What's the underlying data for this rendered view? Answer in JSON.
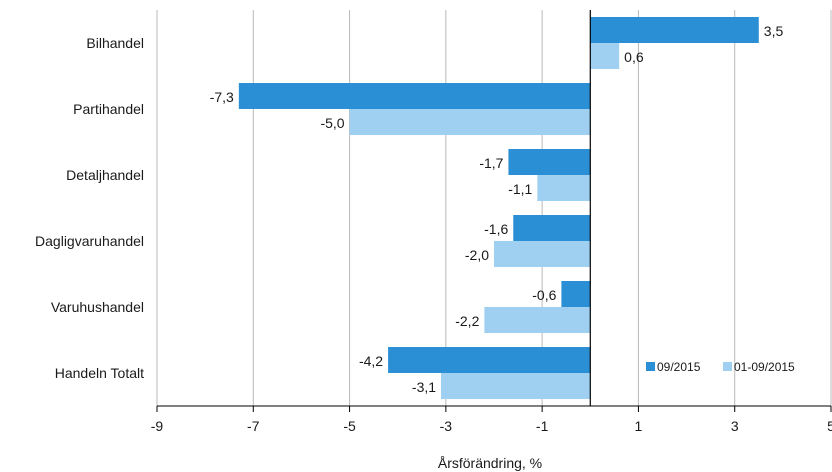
{
  "chart_data": {
    "type": "bar",
    "orientation": "horizontal",
    "categories": [
      "Bilhandel",
      "Partihandel",
      "Detaljhandel",
      "Dagligvaruhandel",
      "Varuhushandel",
      "Handeln Totalt"
    ],
    "series": [
      {
        "name": "09/2015",
        "color": "#2b8fd6",
        "values": [
          3.5,
          -7.3,
          -1.7,
          -1.6,
          -0.6,
          -4.2
        ],
        "labels": [
          "3,5",
          "-7,3",
          "-1,7",
          "-1,6",
          "-0,6",
          "-4,2"
        ]
      },
      {
        "name": "01-09/2015",
        "color": "#9fd0f2",
        "values": [
          0.6,
          -5.0,
          -1.1,
          -2.0,
          -2.2,
          -3.1
        ],
        "labels": [
          "0,6",
          "-5,0",
          "-1,1",
          "-2,0",
          "-2,2",
          "-3,1"
        ]
      }
    ],
    "xlabel": "Årsförändring, %",
    "xlim": [
      -9,
      5
    ],
    "xticks": [
      -9,
      -7,
      -5,
      -3,
      -1,
      1,
      3,
      5
    ],
    "xtick_labels": [
      "-9",
      "-7",
      "-5",
      "-3",
      "-1",
      "1",
      "3",
      "5"
    ],
    "grid": "vertical",
    "legend_position": "bottom-right"
  }
}
